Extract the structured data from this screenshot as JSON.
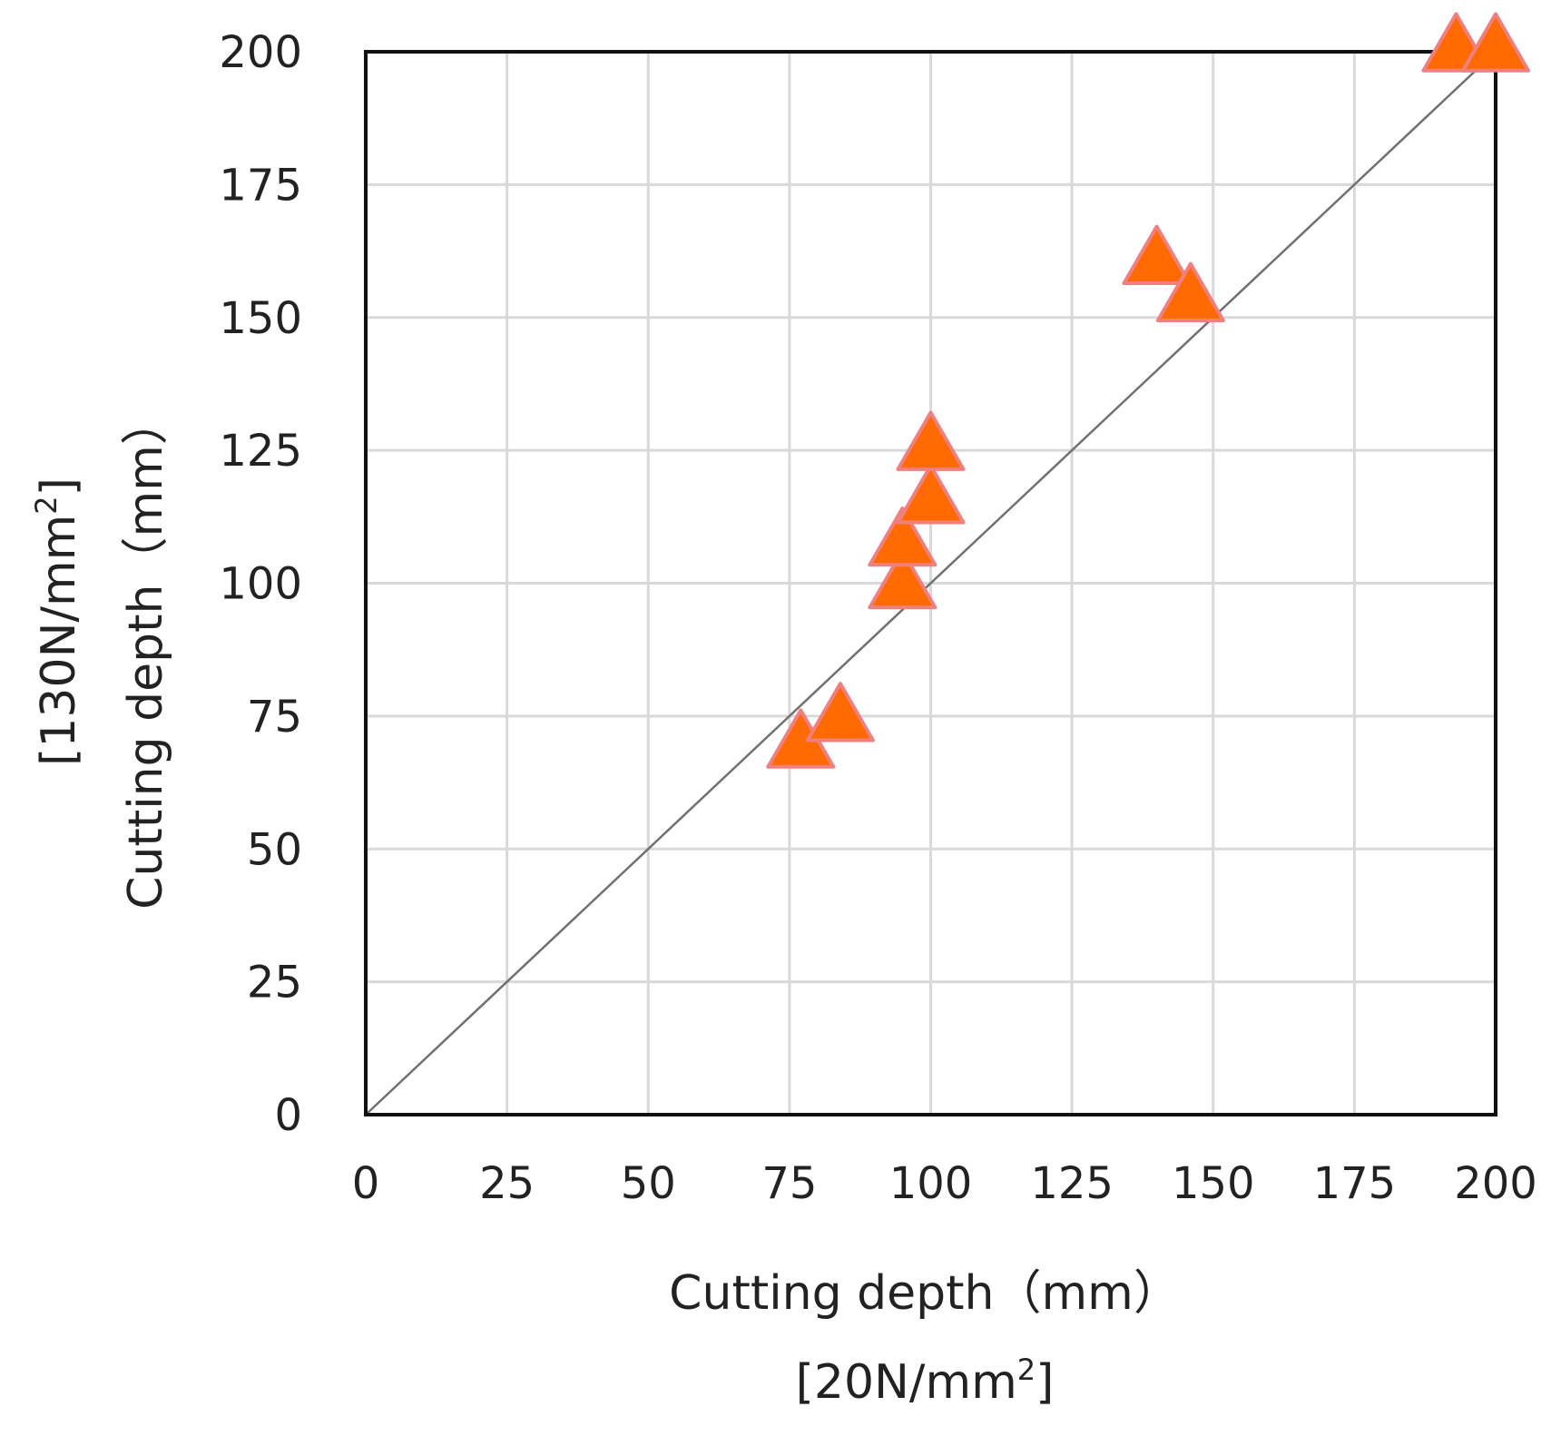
{
  "chart_data": {
    "type": "scatter",
    "xlabel": "Cutting depth（mm）",
    "xlabel_line2": {
      "base": "[20N/mm",
      "sup": "2",
      "tail": "]"
    },
    "ylabel": "Cutting depth（mm）",
    "ylabel_line2": {
      "base": "[130N/mm",
      "sup": "2",
      "tail": "]"
    },
    "xlim": [
      0,
      200
    ],
    "ylim": [
      0,
      200
    ],
    "xticks": [
      0,
      25,
      50,
      75,
      100,
      125,
      150,
      175,
      200
    ],
    "yticks": [
      0,
      25,
      50,
      75,
      100,
      125,
      150,
      175,
      200
    ],
    "grid": true,
    "legend": "none",
    "reference_line": {
      "x": [
        0,
        200
      ],
      "y": [
        0,
        200
      ],
      "color": "#707070"
    },
    "series": [
      {
        "marker": "triangle",
        "color": "#FF6A00",
        "edge_color": "#F08080",
        "points": [
          {
            "x": 77,
            "y": 69
          },
          {
            "x": 84,
            "y": 74
          },
          {
            "x": 95,
            "y": 99
          },
          {
            "x": 95,
            "y": 107
          },
          {
            "x": 100,
            "y": 115
          },
          {
            "x": 100,
            "y": 125
          },
          {
            "x": 140,
            "y": 160
          },
          {
            "x": 146,
            "y": 153
          },
          {
            "x": 193,
            "y": 200
          },
          {
            "x": 200,
            "y": 200
          }
        ]
      }
    ]
  }
}
